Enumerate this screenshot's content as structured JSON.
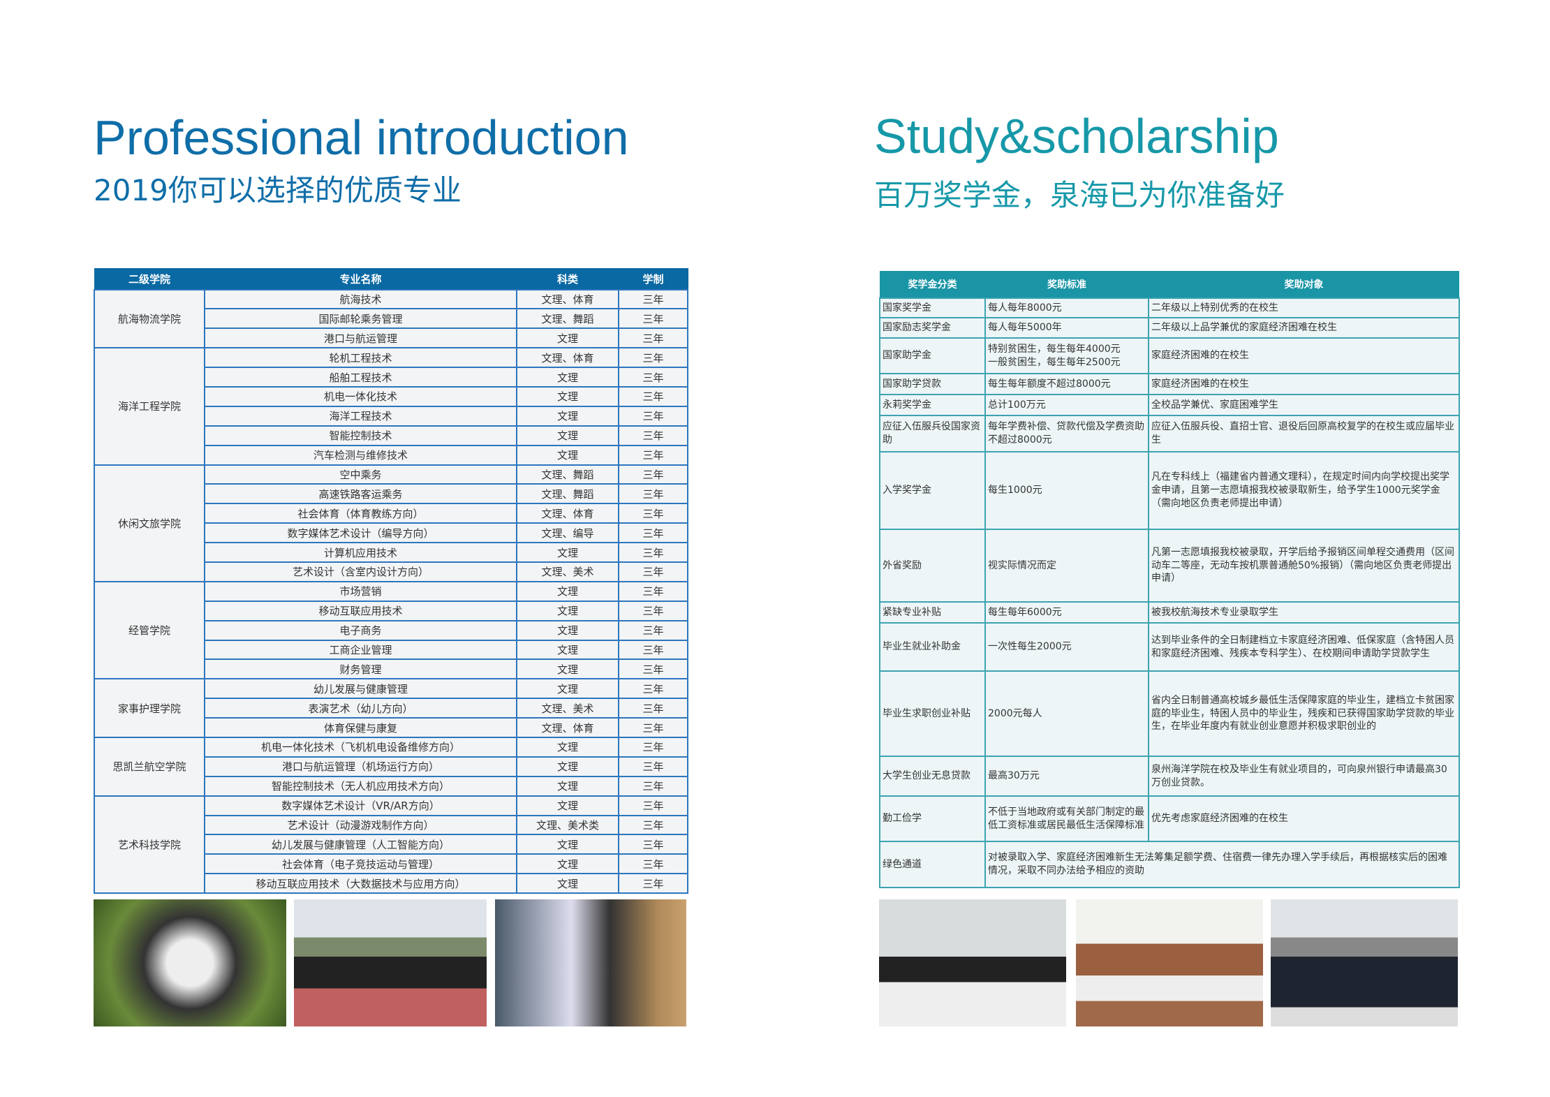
{
  "left": {
    "title": "Professional introduction",
    "subtitle": "2019你可以选择的优质专业",
    "headers": [
      "二级学院",
      "专业名称",
      "科类",
      "学制"
    ],
    "groups": [
      {
        "college": "航海物流学院",
        "rows": [
          [
            "航海技术",
            "文理、体育",
            "三年"
          ],
          [
            "国际邮轮乘务管理",
            "文理、舞蹈",
            "三年"
          ],
          [
            "港口与航运管理",
            "文理",
            "三年"
          ]
        ]
      },
      {
        "college": "海洋工程学院",
        "rows": [
          [
            "轮机工程技术",
            "文理、体育",
            "三年"
          ],
          [
            "船舶工程技术",
            "文理",
            "三年"
          ],
          [
            "机电一体化技术",
            "文理",
            "三年"
          ],
          [
            "海洋工程技术",
            "文理",
            "三年"
          ],
          [
            "智能控制技术",
            "文理",
            "三年"
          ],
          [
            "汽车检测与维修技术",
            "文理",
            "三年"
          ]
        ]
      },
      {
        "college": "休闲文旅学院",
        "rows": [
          [
            "空中乘务",
            "文理、舞蹈",
            "三年"
          ],
          [
            "高速铁路客运乘务",
            "文理、舞蹈",
            "三年"
          ],
          [
            "社会体育（体育教练方向）",
            "文理、体育",
            "三年"
          ],
          [
            "数字媒体艺术设计（编导方向）",
            "文理、编导",
            "三年"
          ],
          [
            "计算机应用技术",
            "文理",
            "三年"
          ],
          [
            "艺术设计（含室内设计方向）",
            "文理、美术",
            "三年"
          ]
        ]
      },
      {
        "college": "经管学院",
        "rows": [
          [
            "市场营销",
            "文理",
            "三年"
          ],
          [
            "移动互联应用技术",
            "文理",
            "三年"
          ],
          [
            "电子商务",
            "文理",
            "三年"
          ],
          [
            "工商企业管理",
            "文理",
            "三年"
          ],
          [
            "财务管理",
            "文理",
            "三年"
          ]
        ]
      },
      {
        "college": "家事护理学院",
        "rows": [
          [
            "幼儿发展与健康管理",
            "文理",
            "三年"
          ],
          [
            "表演艺术（幼儿方向）",
            "文理、美术",
            "三年"
          ],
          [
            "体育保健与康复",
            "文理、体育",
            "三年"
          ]
        ]
      },
      {
        "college": "思凯兰航空学院",
        "rows": [
          [
            "机电一体化技术（飞机机电设备维修方向）",
            "文理",
            "三年"
          ],
          [
            "港口与航运管理（机场运行方向）",
            "文理",
            "三年"
          ],
          [
            "智能控制技术（无人机应用技术方向）",
            "文理",
            "三年"
          ]
        ]
      },
      {
        "college": "艺术科技学院",
        "rows": [
          [
            "数字媒体艺术设计（VR/AR方向）",
            "文理",
            "三年"
          ],
          [
            "艺术设计（动漫游戏制作方向）",
            "文理、美术类",
            "三年"
          ],
          [
            "幼儿发展与健康管理（人工智能方向）",
            "文理",
            "三年"
          ],
          [
            "社会体育（电子竞技运动与管理）",
            "文理",
            "三年"
          ],
          [
            "移动互联应用技术（大数据技术与应用方向）",
            "文理",
            "三年"
          ]
        ]
      }
    ]
  },
  "right": {
    "title": "Study&scholarship",
    "subtitle": "百万奖学金，泉海已为你准备好",
    "headers": [
      "奖学金分类",
      "奖助标准",
      "奖助对象"
    ],
    "rows": [
      [
        "国家奖学金",
        "每人每年8000元",
        "二年级以上特别优秀的在校生"
      ],
      [
        "国家励志奖学金",
        "每人每年5000年",
        "二年级以上品学兼优的家庭经济困难在校生"
      ],
      [
        "国家助学金",
        "特别贫困生，每生每年4000元\n一般贫困生，每生每年2500元",
        "家庭经济困难的在校生"
      ],
      [
        "国家助学贷款",
        "每生每年额度不超过8000元",
        "家庭经济困难的在校生"
      ],
      [
        "永莉奖学金",
        "总计100万元",
        "全校品学兼优、家庭困难学生"
      ],
      [
        "应征入伍服兵役国家资助",
        "每年学费补偿、贷款代偿及学费资助不超过8000元",
        "应征入伍服兵役、直招士官、退役后回原高校复学的在校生或应届毕业生"
      ],
      [
        "入学奖学金",
        "每生1000元",
        "凡在专科线上（福建省内普通文理科），在规定时间内向学校提出奖学金申请，且第一志愿填报我校被录取新生，给予学生1000元奖学金（需向地区负责老师提出申请）"
      ],
      [
        "外省奖励",
        "视实际情况而定",
        "凡第一志愿填报我校被录取，开学后给予报销区间单程交通费用（区间动车二等座，无动车按机票普通舱50%报销）（需向地区负责老师提出申请）"
      ],
      [
        "紧缺专业补贴",
        "每生每年6000元",
        "被我校航海技术专业录取学生"
      ],
      [
        "毕业生就业补助金",
        "一次性每生2000元",
        "达到毕业条件的全日制建档立卡家庭经济困难、低保家庭（含特困人员和家庭经济困难、残疾本专科学生）、在校期间申请助学贷款学生"
      ],
      [
        "毕业生求职创业补贴",
        "2000元每人",
        "省内全日制普通高校城乡最低生活保障家庭的毕业生，建档立卡贫困家庭的毕业生，特困人员中的毕业生，残疾和已获得国家助学贷款的毕业生，在毕业年度内有就业创业意愿并积极求职创业的"
      ],
      [
        "大学生创业无息贷款",
        "最高30万元",
        "泉州海洋学院在校及毕业生有就业项目的，可向泉州银行申请最高30万创业贷款。"
      ],
      [
        "勤工俭学",
        "不低于当地政府或有关部门制定的最低工资标准或居民最低生活保障标准",
        "优先考虑家庭经济困难的在校生"
      ]
    ],
    "green": [
      "绿色通道",
      "对被录取入学、家庭经济困难新生无法筹集足额学费、住宿费一律先办理入学手续后，再根据核实后的困难情况，采取不同办法给予相应的资助"
    ]
  },
  "colors": {
    "left_accent": "#0a68a3",
    "right_accent": "#1a95a6"
  }
}
